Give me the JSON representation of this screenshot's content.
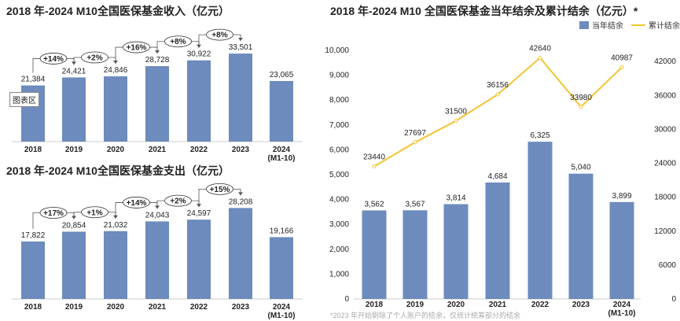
{
  "colors": {
    "bar": "#6d8bbd",
    "line": "#f4c430",
    "text": "#222222"
  },
  "tooltip": "图表区",
  "footnote": "*2023 年开始剔除了个人账户的结余，仅统计统筹部分的结余",
  "chart_data": [
    {
      "type": "bar",
      "title": "2018 年-2024 M10全国医保基金收入（亿元）",
      "categories": [
        "2018",
        "2019",
        "2020",
        "2021",
        "2022",
        "2023",
        "2024\n(M1-10)"
      ],
      "values": [
        21384,
        24421,
        24846,
        28728,
        30922,
        33501,
        23065
      ],
      "labels": [
        "21,384",
        "24,421",
        "24,846",
        "28,728",
        "30,922",
        "33,501",
        "23,065"
      ],
      "growth": [
        "+14%",
        "+2%",
        "+16%",
        "+8%",
        "+8%"
      ]
    },
    {
      "type": "bar",
      "title": "2018 年-2024 M10全国医保基金支出（亿元）",
      "categories": [
        "2018",
        "2019",
        "2020",
        "2021",
        "2022",
        "2023",
        "2024\n(M1-10)"
      ],
      "values": [
        17822,
        20854,
        21032,
        24043,
        24597,
        28208,
        19166
      ],
      "labels": [
        "17,822",
        "20,854",
        "21,032",
        "24,043",
        "24,597",
        "28,208",
        "19,166"
      ],
      "growth": [
        "+17%",
        "+1%",
        "+14%",
        "+2%",
        "+15%"
      ]
    },
    {
      "type": "bar+line",
      "title": "2018 年-2024 M10 全国医保基金当年结余及累计结余（亿元）*",
      "categories": [
        "2018",
        "2019",
        "2020",
        "2021",
        "2022",
        "2023",
        "2024\n(M1-10)"
      ],
      "series": [
        {
          "name": "当年结余",
          "type": "bar",
          "axis": "left",
          "values": [
            3562,
            3567,
            3814,
            4684,
            6325,
            5040,
            3899
          ],
          "labels": [
            "3,562",
            "3,567",
            "3,814",
            "4,684",
            "6,325",
            "5,040",
            "3,899"
          ]
        },
        {
          "name": "累计结余",
          "type": "line",
          "axis": "right",
          "values": [
            23440,
            27697,
            31500,
            36156,
            42640,
            33980,
            40987
          ],
          "labels": [
            "23440",
            "27697",
            "31500",
            "36156",
            "42640",
            "33980",
            "40987"
          ]
        }
      ],
      "ylim_left": [
        0,
        10000
      ],
      "yticks_left": [
        "0",
        "1,000",
        "2,000",
        "3,000",
        "4,000",
        "5,000",
        "6,000",
        "7,000",
        "8,000",
        "9,000",
        "10,000"
      ],
      "ylim_right": [
        0,
        48000
      ],
      "yticks_right": [
        "0",
        "6000",
        "12000",
        "18000",
        "24000",
        "30000",
        "36000",
        "42000"
      ],
      "legend": "top-right",
      "grid": false
    }
  ]
}
